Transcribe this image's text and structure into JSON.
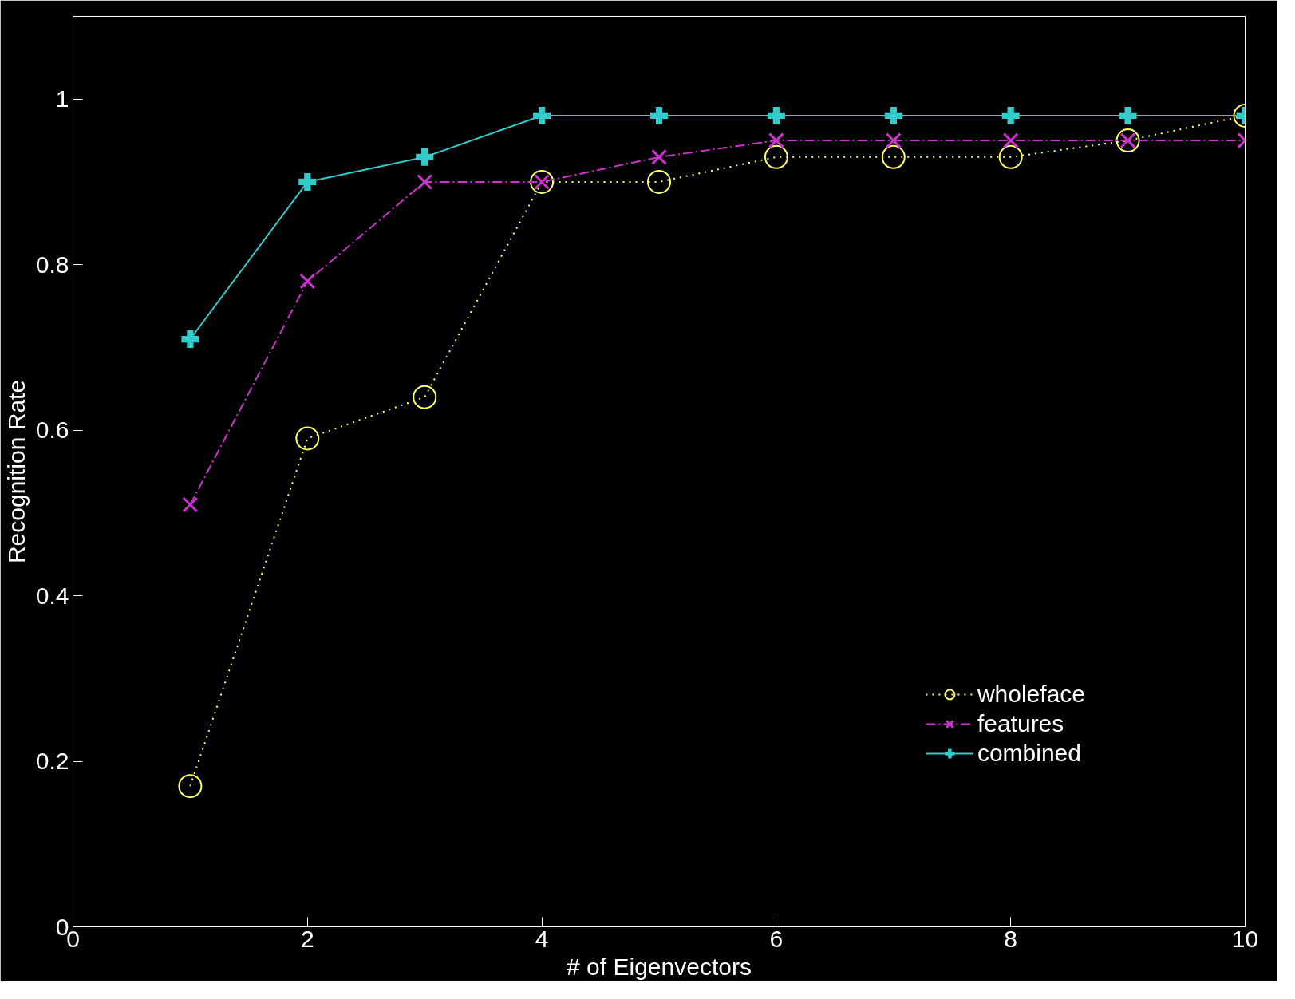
{
  "chart_data": {
    "type": "line",
    "xlabel": "# of Eigenvectors",
    "ylabel": "Recognition Rate",
    "x": [
      1,
      2,
      3,
      4,
      5,
      6,
      7,
      8,
      9,
      10
    ],
    "series": [
      {
        "name": "wholeface",
        "color": "#ffff66",
        "marker": "circle",
        "line_style": "dotted",
        "values": [
          0.17,
          0.59,
          0.64,
          0.9,
          0.9,
          0.93,
          0.93,
          0.93,
          0.95,
          0.98
        ]
      },
      {
        "name": "features",
        "color": "#cc33cc",
        "marker": "cross",
        "line_style": "dashed",
        "values": [
          0.51,
          0.78,
          0.9,
          0.9,
          0.93,
          0.95,
          0.95,
          0.95,
          0.95,
          0.95
        ]
      },
      {
        "name": "combined",
        "color": "#33cccc",
        "marker": "cross",
        "line_style": "solid",
        "values": [
          0.71,
          0.9,
          0.93,
          0.98,
          0.98,
          0.98,
          0.98,
          0.98,
          0.98,
          0.98
        ]
      }
    ],
    "xlim": [
      0,
      10
    ],
    "ylim": [
      0,
      1.1
    ],
    "xticks": [
      0,
      2,
      4,
      6,
      8,
      10
    ],
    "yticks": [
      0,
      0.2,
      0.4,
      0.6,
      0.8,
      1
    ],
    "grid": false,
    "legend": "bottom right"
  }
}
